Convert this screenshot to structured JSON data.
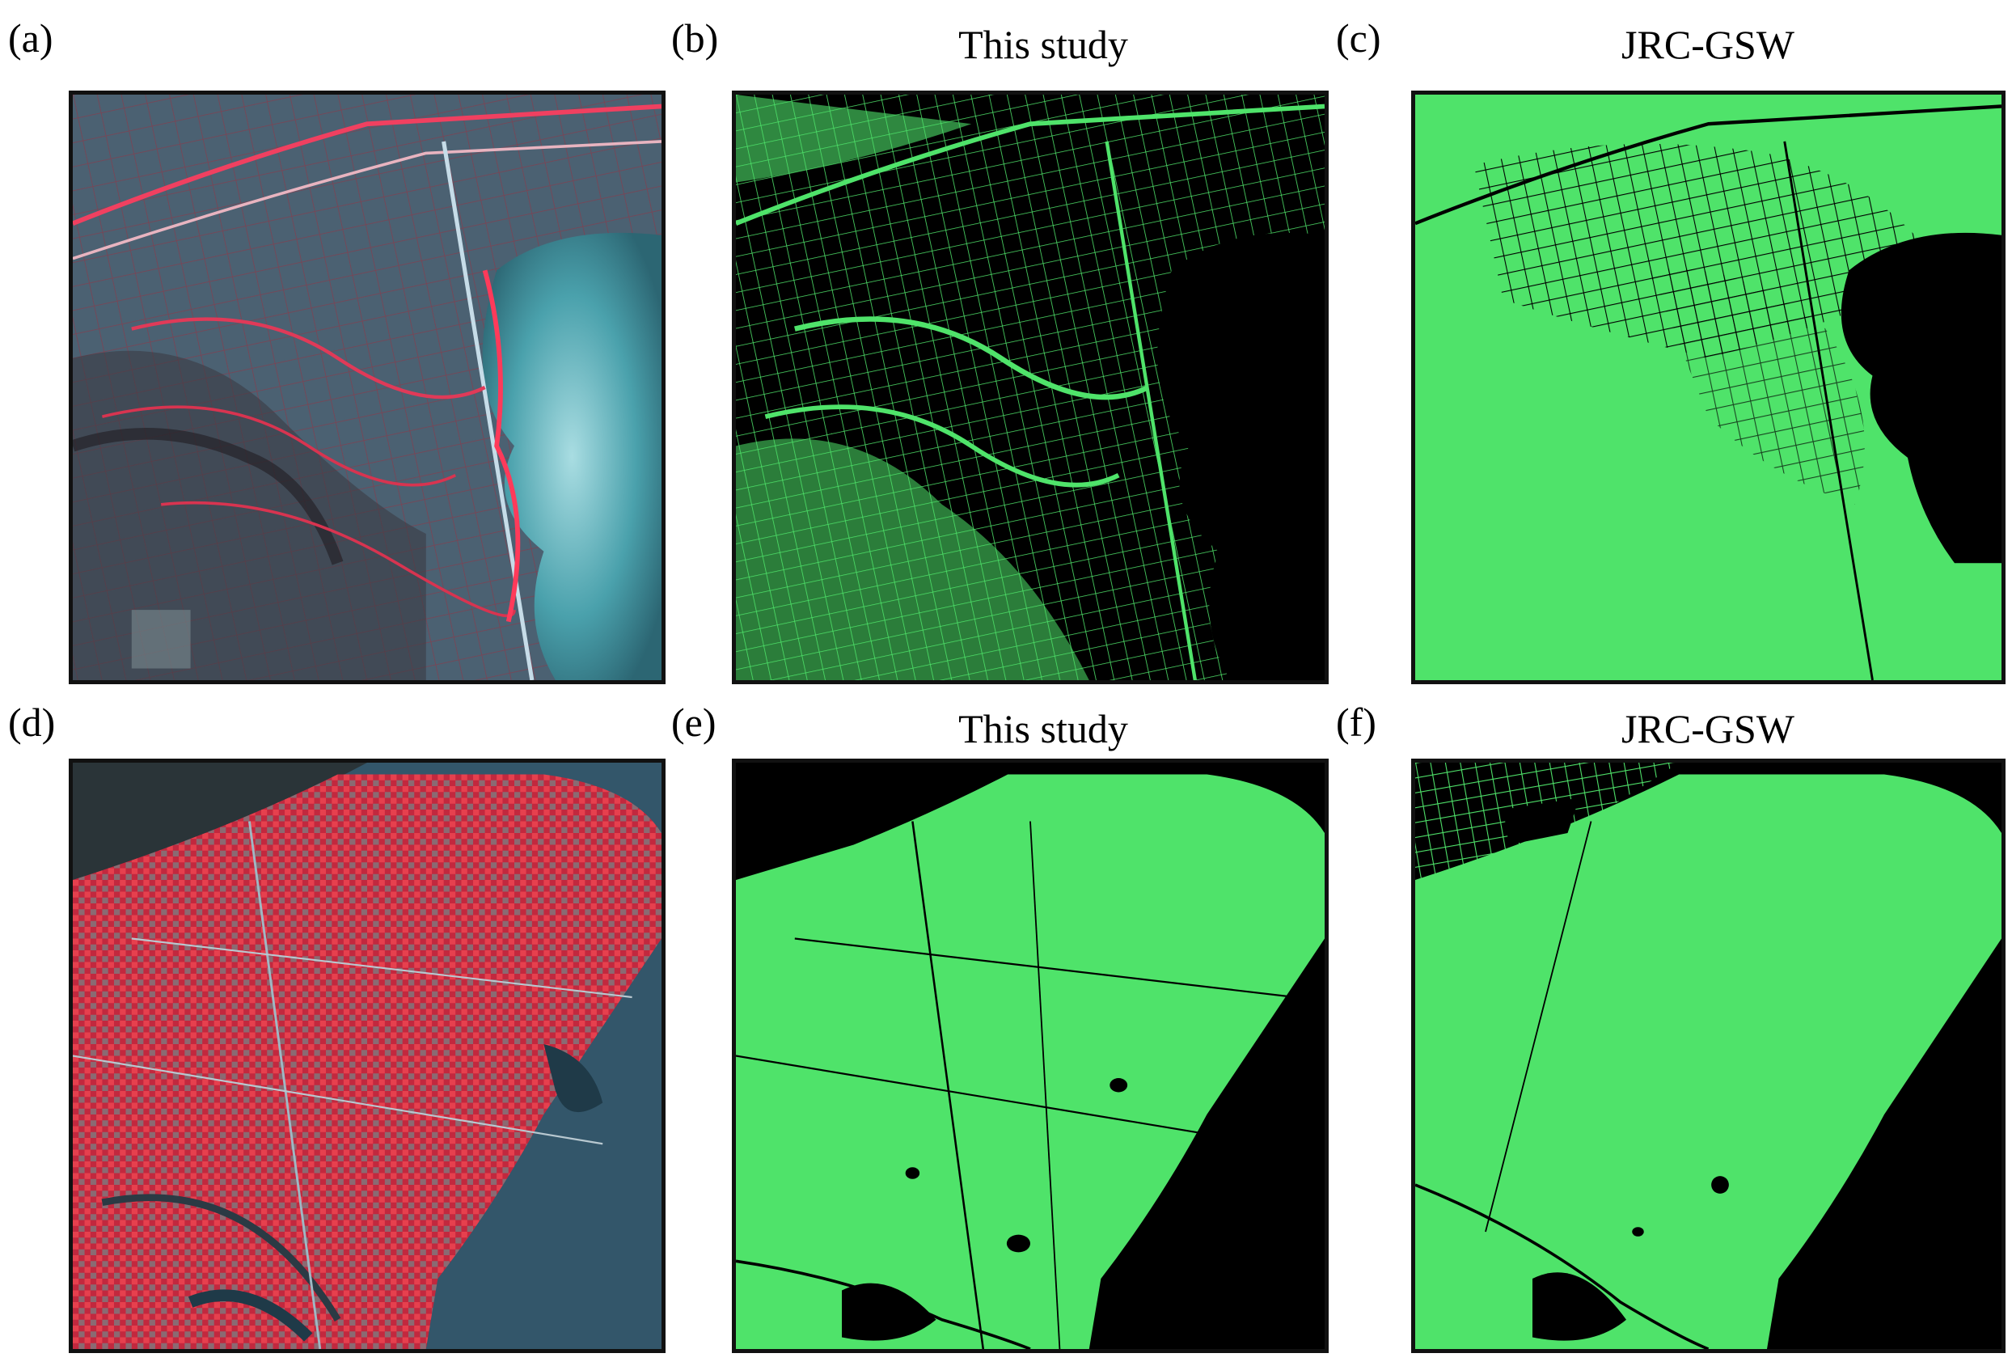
{
  "figure": {
    "panels": [
      {
        "id": "a",
        "letter": "(a)",
        "title": "",
        "kind": "false-color"
      },
      {
        "id": "b",
        "letter": "(b)",
        "title": "This study",
        "kind": "binary-map"
      },
      {
        "id": "c",
        "letter": "(c)",
        "title": "JRC-GSW",
        "kind": "binary-map"
      },
      {
        "id": "d",
        "letter": "(d)",
        "title": "",
        "kind": "false-color"
      },
      {
        "id": "e",
        "letter": "(e)",
        "title": "This study",
        "kind": "binary-map"
      },
      {
        "id": "f",
        "letter": "(f)",
        "title": "JRC-GSW",
        "kind": "binary-map"
      }
    ]
  },
  "colors": {
    "mask_green": "#4fe36a",
    "background_black": "#000000",
    "vegetation_red": "#d8283c",
    "water_cyan": "#3a8f9c",
    "land_blue_gray": "#4a6170"
  }
}
